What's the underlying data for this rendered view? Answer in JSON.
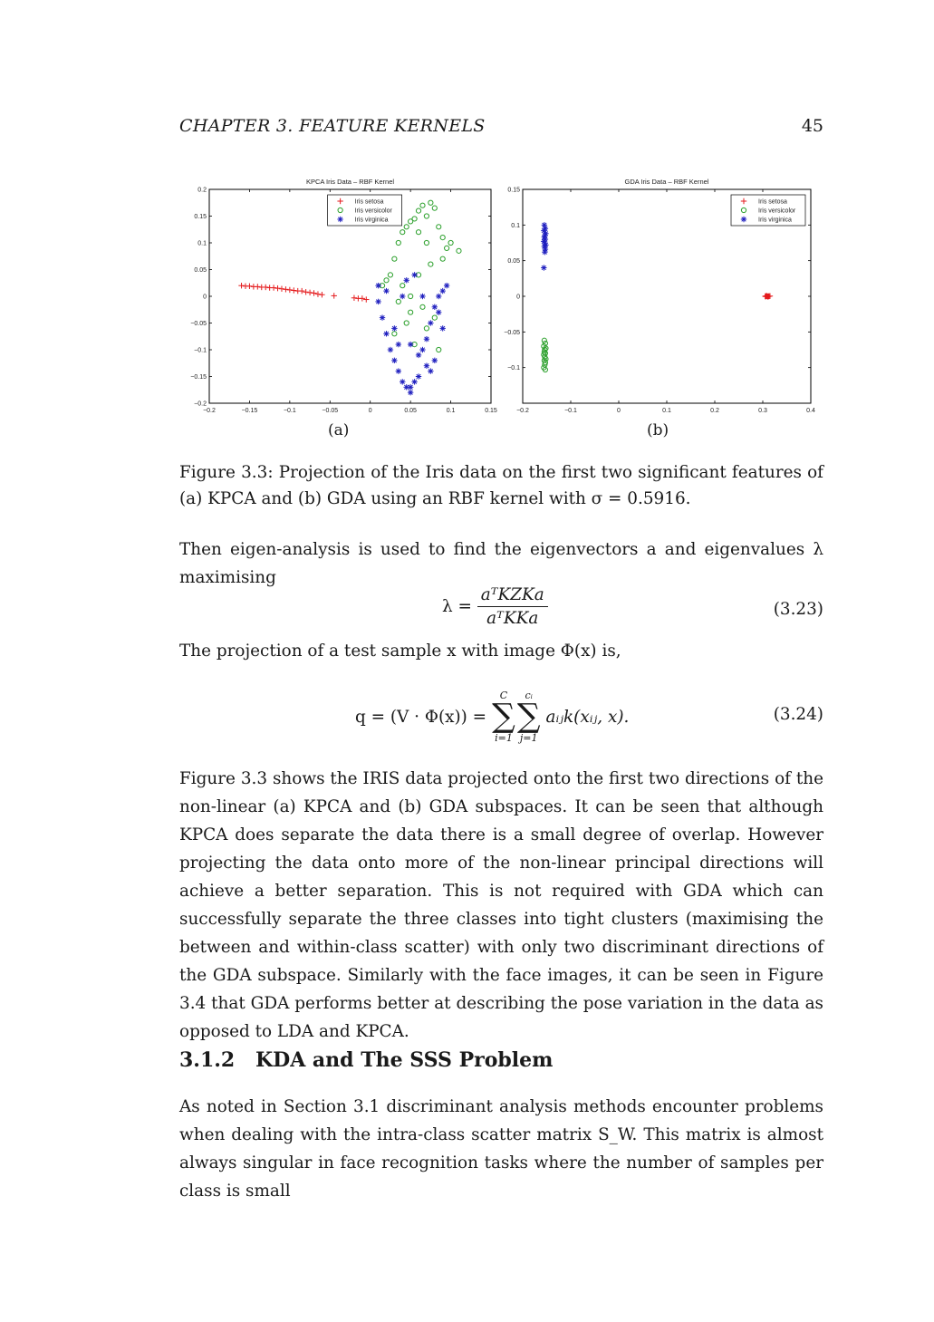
{
  "header": {
    "running_title": "CHAPTER 3.   FEATURE KERNELS",
    "page_number": "45"
  },
  "figure": {
    "panel_a_label": "(a)",
    "panel_b_label": "(b)",
    "caption": "Figure 3.3: Projection of the Iris data on the first two significant features of (a) KPCA and (b) GDA using an RBF kernel with σ = 0.5916."
  },
  "chart_data": [
    {
      "type": "scatter",
      "title": "KPCA Iris Data – RBF Kernel",
      "xlim": [
        -0.2,
        0.15
      ],
      "ylim": [
        -0.2,
        0.2
      ],
      "xticks": [
        "−0.2",
        "−0.15",
        "−0.1",
        "−0.05",
        "0",
        "0.05",
        "0.1",
        "0.15"
      ],
      "yticks": [
        "0.2",
        "0.15",
        "0.1",
        "0.05",
        "0",
        "−0.05",
        "−0.1",
        "−0.15",
        "−0.2"
      ],
      "legend_position": "top-center",
      "series": [
        {
          "name": "Iris setosa",
          "marker": "+",
          "color": "#e41a1c",
          "x": [
            -0.16,
            -0.155,
            -0.15,
            -0.145,
            -0.14,
            -0.135,
            -0.13,
            -0.125,
            -0.12,
            -0.115,
            -0.11,
            -0.105,
            -0.1,
            -0.095,
            -0.09,
            -0.085,
            -0.08,
            -0.075,
            -0.07,
            -0.065,
            -0.06,
            -0.045,
            -0.02,
            -0.015,
            -0.01,
            -0.005
          ],
          "y": [
            0.02,
            0.019,
            0.019,
            0.018,
            0.018,
            0.017,
            0.017,
            0.016,
            0.016,
            0.015,
            0.014,
            0.013,
            0.012,
            0.011,
            0.01,
            0.01,
            0.008,
            0.007,
            0.006,
            0.004,
            0.003,
            0.001,
            -0.003,
            -0.004,
            -0.004,
            -0.006
          ]
        },
        {
          "name": "Iris versicolor",
          "marker": "o",
          "color": "#2ca02c",
          "x": [
            0.02,
            0.03,
            0.035,
            0.04,
            0.045,
            0.05,
            0.055,
            0.06,
            0.065,
            0.07,
            0.075,
            0.08,
            0.085,
            0.09,
            0.095,
            0.1,
            0.11,
            0.075,
            0.06,
            0.04,
            0.05,
            0.065,
            0.08,
            0.045,
            0.07,
            0.085,
            0.055,
            0.035,
            0.025,
            0.015,
            0.06,
            0.07,
            0.09,
            0.03,
            0.05
          ],
          "y": [
            0.03,
            0.07,
            0.1,
            0.12,
            0.13,
            0.14,
            0.145,
            0.16,
            0.17,
            0.15,
            0.175,
            0.165,
            0.13,
            0.11,
            0.09,
            0.1,
            0.085,
            0.06,
            0.04,
            0.02,
            0.0,
            -0.02,
            -0.04,
            -0.05,
            -0.06,
            -0.1,
            -0.09,
            -0.01,
            0.04,
            0.02,
            0.12,
            0.1,
            0.07,
            -0.07,
            -0.03
          ]
        },
        {
          "name": "Iris virginica",
          "marker": "*",
          "color": "#1f1fbf",
          "x": [
            0.01,
            0.015,
            0.02,
            0.025,
            0.03,
            0.035,
            0.04,
            0.045,
            0.05,
            0.055,
            0.06,
            0.065,
            0.07,
            0.075,
            0.08,
            0.085,
            0.09,
            0.095,
            0.01,
            0.02,
            0.03,
            0.05,
            0.06,
            0.07,
            0.08,
            0.04,
            0.045,
            0.055,
            0.065,
            0.085,
            0.09,
            0.035,
            0.075,
            0.05
          ],
          "y": [
            -0.01,
            -0.04,
            -0.07,
            -0.1,
            -0.12,
            -0.14,
            -0.16,
            -0.17,
            -0.18,
            -0.16,
            -0.15,
            -0.1,
            -0.08,
            -0.05,
            -0.02,
            0.0,
            0.01,
            0.02,
            0.02,
            0.01,
            -0.06,
            -0.09,
            -0.11,
            -0.13,
            -0.12,
            0.0,
            0.03,
            0.04,
            0.0,
            -0.03,
            -0.06,
            -0.09,
            -0.14,
            -0.17
          ]
        }
      ]
    },
    {
      "type": "scatter",
      "title": "GDA Iris Data – RBF Kernel",
      "xlim": [
        -0.2,
        0.4
      ],
      "ylim": [
        -0.15,
        0.15
      ],
      "xticks": [
        "−0.2",
        "−0.1",
        "0",
        "0.1",
        "0.2",
        "0.3",
        "0.4"
      ],
      "yticks": [
        "0.15",
        "0.1",
        "0.05",
        "0",
        "−0.05",
        "−0.1"
      ],
      "legend_position": "top-right",
      "series": [
        {
          "name": "Iris setosa",
          "marker": "+",
          "color": "#e41a1c",
          "x": [
            0.305,
            0.308,
            0.31,
            0.312,
            0.315,
            0.306,
            0.309,
            0.311,
            0.313,
            0.307
          ],
          "y": [
            0.0,
            0.0005,
            -0.0005,
            0.0,
            0.0003,
            -0.0003,
            0.0002,
            -0.0002,
            0.0,
            0.0004
          ]
        },
        {
          "name": "Iris versicolor",
          "marker": "o",
          "color": "#2ca02c",
          "x": [
            -0.155,
            -0.153,
            -0.156,
            -0.152,
            -0.154,
            -0.155,
            -0.153,
            -0.156,
            -0.154,
            -0.152,
            -0.155,
            -0.153,
            -0.154,
            -0.156,
            -0.153
          ],
          "y": [
            -0.062,
            -0.066,
            -0.07,
            -0.073,
            -0.075,
            -0.078,
            -0.08,
            -0.082,
            -0.085,
            -0.088,
            -0.09,
            -0.093,
            -0.096,
            -0.1,
            -0.103
          ]
        },
        {
          "name": "Iris virginica",
          "marker": "*",
          "color": "#1f1fbf",
          "x": [
            -0.155,
            -0.153,
            -0.156,
            -0.152,
            -0.154,
            -0.155,
            -0.153,
            -0.156,
            -0.154,
            -0.152,
            -0.155,
            -0.153,
            -0.154,
            -0.156
          ],
          "y": [
            0.1,
            0.095,
            0.092,
            0.088,
            0.085,
            0.083,
            0.08,
            0.077,
            0.075,
            0.072,
            0.07,
            0.066,
            0.062,
            0.04
          ]
        }
      ]
    }
  ],
  "body": {
    "para1": "Then eigen-analysis is used to find the eigenvectors a and eigenvalues λ maximising",
    "eq323_lhs": "λ =",
    "eq323_num": "aᵀKZKa",
    "eq323_den": "aᵀKKa",
    "eq323_label": "(3.23)",
    "para2": "The projection of a test sample x with image Φ(x) is,",
    "eq324_lhs": "q = (V · Φ(x)) =",
    "eq324_sum1_top": "C",
    "eq324_sum1_bottom": "i=1",
    "eq324_sum2_top": "cᵢ",
    "eq324_sum2_bottom": "j=1",
    "eq324_rhs": "aᵢⱼk(xᵢⱼ, x).",
    "eq324_label": "(3.24)",
    "para3": "Figure 3.3 shows the IRIS data projected onto the first two directions of the non-linear (a) KPCA and (b) GDA subspaces. It can be seen that although KPCA does separate the data there is a small degree of overlap. However projecting the data onto more of the non-linear principal directions will achieve a better separation. This is not required with GDA which can successfully separate the three classes into tight clusters (maximising the between and within-class scatter) with only two discriminant directions of the GDA subspace. Similarly with the face images, it can be seen in Figure 3.4 that GDA performs better at describing the pose variation in the data as opposed to LDA and KPCA.",
    "section_number": "3.1.2",
    "section_title": "KDA and The SSS Problem",
    "para4": "As noted in Section 3.1 discriminant analysis methods encounter problems when dealing with the intra-class scatter matrix S_W. This matrix is almost always singular in face recognition tasks where the number of samples per class is small"
  }
}
